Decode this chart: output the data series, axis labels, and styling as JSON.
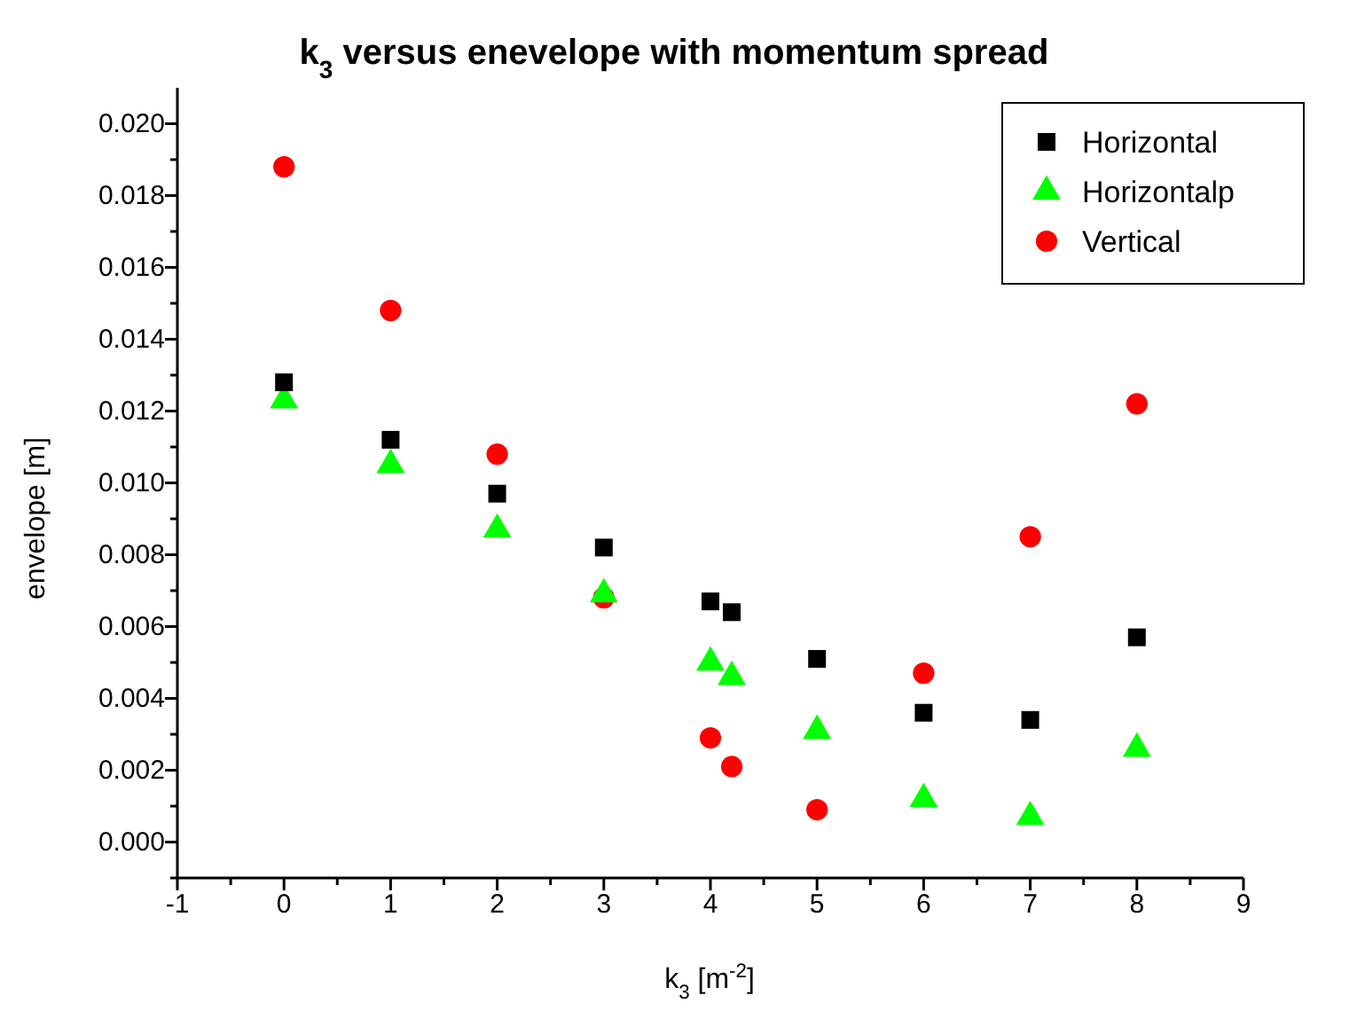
{
  "chart_data": {
    "type": "scatter",
    "title": "k$_{3}$ versus enevelope with momentum spread",
    "xlabel": "k$_{3}$   [m$^{-2}$]",
    "ylabel": "envelope   [m]",
    "xlim": [
      -1,
      9
    ],
    "ylim": [
      -0.001,
      0.021
    ],
    "xticks": [
      -1,
      {
        "value": -0.5,
        "label": null
      },
      0,
      {
        "value": 0.5,
        "label": null
      },
      1,
      {
        "value": 1.5,
        "label": null
      },
      2,
      {
        "value": 2.5,
        "label": null
      },
      3,
      {
        "value": 3.5,
        "label": null
      },
      4,
      {
        "value": 4.5,
        "label": null
      },
      5,
      {
        "value": 5.5,
        "label": null
      },
      6,
      {
        "value": 6.5,
        "label": null
      },
      7,
      {
        "value": 7.5,
        "label": null
      },
      8,
      {
        "value": 8.5,
        "label": null
      },
      9
    ],
    "yticks": [
      {
        "value": -0.001,
        "label": null
      },
      {
        "value": 0,
        "label": "0.000"
      },
      {
        "value": 0.001,
        "label": null
      },
      {
        "value": 0.002,
        "label": "0.002"
      },
      {
        "value": 0.003,
        "label": null
      },
      {
        "value": 0.004,
        "label": "0.004"
      },
      {
        "value": 0.005,
        "label": null
      },
      {
        "value": 0.006,
        "label": "0.006"
      },
      {
        "value": 0.007,
        "label": null
      },
      {
        "value": 0.008,
        "label": "0.008"
      },
      {
        "value": 0.009,
        "label": null
      },
      {
        "value": 0.01,
        "label": "0.010"
      },
      {
        "value": 0.011,
        "label": null
      },
      {
        "value": 0.012,
        "label": "0.012"
      },
      {
        "value": 0.013,
        "label": null
      },
      {
        "value": 0.014,
        "label": "0.014"
      },
      {
        "value": 0.015,
        "label": null
      },
      {
        "value": 0.016,
        "label": "0.016"
      },
      {
        "value": 0.017,
        "label": null
      },
      {
        "value": 0.018,
        "label": "0.018"
      },
      {
        "value": 0.019,
        "label": null
      },
      {
        "value": 0.02,
        "label": "0.020"
      }
    ],
    "x": [
      0,
      1,
      2,
      3,
      4,
      4.2,
      5,
      6,
      7,
      8
    ],
    "grid": false,
    "legend": "top right",
    "series": [
      {
        "name": "Horizontal",
        "color": "#000000",
        "marker": "square",
        "values": [
          0.0128,
          0.0112,
          0.0097,
          0.0082,
          0.0067,
          0.0064,
          0.0051,
          0.0036,
          0.0034,
          0.0057
        ]
      },
      {
        "name": "Horizontalp",
        "color": "#00ff00",
        "marker": "triangle",
        "values": [
          0.0123,
          0.0105,
          0.0087,
          0.0069,
          0.005,
          0.0046,
          0.0031,
          0.0012,
          0.0007,
          0.0026
        ]
      },
      {
        "name": "Vertical",
        "color": "#ff0000",
        "marker": "circle",
        "values": [
          0.0188,
          0.0148,
          0.0108,
          0.0068,
          0.0029,
          0.0021,
          0.0009,
          0.0047,
          0.0085,
          0.0122
        ]
      }
    ]
  }
}
